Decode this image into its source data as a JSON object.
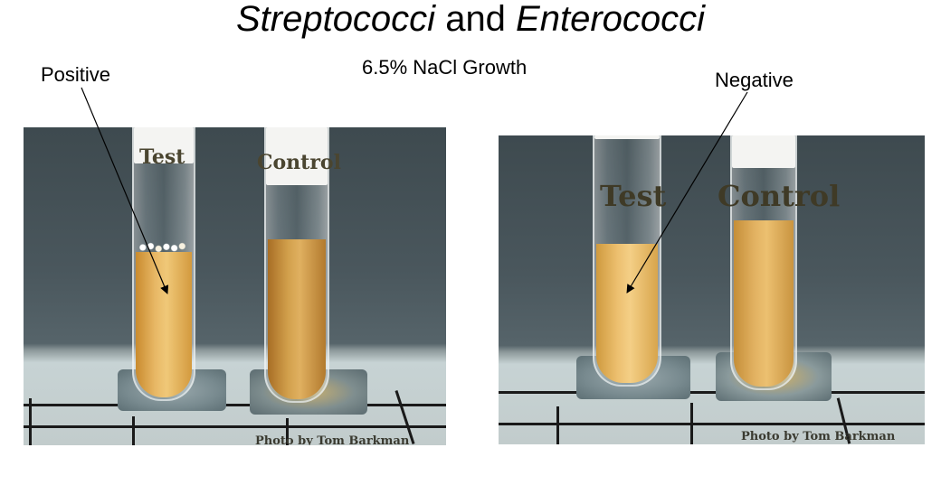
{
  "title": {
    "part1": "Streptococci",
    "middle": " and ",
    "part2": "Enterococci"
  },
  "subtitle": "6.5% NaCl Growth",
  "labels": {
    "positive": "Positive",
    "negative": "Negative"
  },
  "photos": {
    "left": {
      "test_label": "Test",
      "control_label": "Control",
      "credit": "Photo by Tom Barkman"
    },
    "right": {
      "test_label": "Test",
      "control_label": "Control",
      "credit": "Photo by Tom Barkman"
    }
  },
  "colors": {
    "broth": "#d8a44c",
    "broth_light": "#e8b866",
    "background": "#ffffff"
  }
}
